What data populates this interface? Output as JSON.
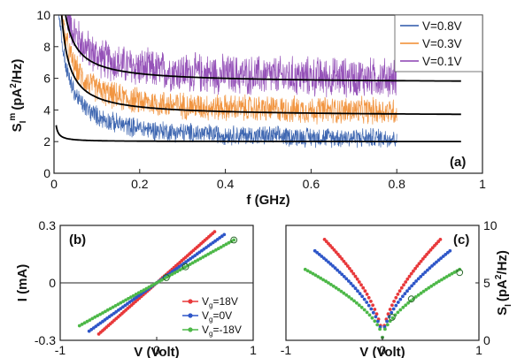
{
  "chart_data": [
    {
      "panel": "(a)",
      "type": "line",
      "xlabel": "f (GHz)",
      "ylabel_base": "S",
      "ylabel_sub": "I",
      "ylabel_sup": "m",
      "ylabel_units_pre": "(pA",
      "ylabel_units_sup": "2",
      "ylabel_units_post": "/Hz)",
      "xlim": [
        0,
        1
      ],
      "ylim": [
        0,
        10
      ],
      "x_ticks": [
        0,
        0.2,
        0.4,
        0.6,
        0.8,
        1
      ],
      "x_tick_labels": [
        "0",
        "0.2",
        "0.4",
        "0.6",
        "0.8",
        "1"
      ],
      "y_ticks": [
        0,
        2,
        4,
        6,
        8,
        10
      ],
      "y_tick_labels": [
        "0",
        "2",
        "4",
        "6",
        "8",
        "10"
      ],
      "legend_position": "top-right",
      "series": [
        {
          "name": "V=0.8V",
          "color": "#2a56a8",
          "noise_level": 2.0,
          "noise_amp": 0.55,
          "fit_level": 2.0
        },
        {
          "name": "V=0.3V",
          "color": "#f08a2c",
          "noise_level": 3.7,
          "noise_amp": 0.75,
          "fit_level": 3.6
        },
        {
          "name": "V=0.1V",
          "color": "#8a3fb0",
          "noise_level": 5.8,
          "noise_amp": 1.1,
          "fit_level": 5.7
        }
      ],
      "data_x_range": [
        0.005,
        0.8
      ],
      "fit_x_range": [
        0.005,
        0.95
      ],
      "fit_color": "#000000"
    },
    {
      "panel": "(b)",
      "type": "scatter",
      "xlabel": "V (Volt)",
      "ylabel": "I (mA)",
      "xlim": [
        -1,
        1
      ],
      "ylim": [
        -0.3,
        0.3
      ],
      "x_ticks": [
        -1,
        0,
        1
      ],
      "x_tick_labels": [
        "-1",
        "0",
        "1"
      ],
      "y_ticks": [
        -0.3,
        0,
        0.3
      ],
      "y_tick_labels": [
        "-0.3",
        "0",
        "0.3"
      ],
      "legend_position": "bottom-right",
      "series": [
        {
          "name": "V",
          "name_sub": "g",
          "name_rest": "=18V",
          "color": "#e8383a",
          "x_range": [
            -0.6,
            0.6
          ],
          "slope": 0.445
        },
        {
          "name": "V",
          "name_sub": "g",
          "name_rest": "=0V",
          "color": "#2e56c8",
          "x_range": [
            -0.7,
            0.7
          ],
          "slope": 0.36
        },
        {
          "name": "V",
          "name_sub": "g",
          "name_rest": "=-18V",
          "color": "#4db848",
          "x_range": [
            -0.8,
            0.8
          ],
          "slope": 0.28
        }
      ],
      "circled_points": [
        {
          "x": 0.1,
          "y": 0.028
        },
        {
          "x": 0.3,
          "y": 0.084
        },
        {
          "x": 0.8,
          "y": 0.224
        }
      ]
    },
    {
      "panel": "(c)",
      "type": "scatter",
      "xlabel": "V (Volt)",
      "ylabel_base": "S",
      "ylabel_sub": "I",
      "ylabel_units_pre": "(pA",
      "ylabel_units_sup": "2",
      "ylabel_units_post": "/Hz)",
      "xlim": [
        -1,
        1
      ],
      "ylim": [
        0,
        10
      ],
      "x_ticks": [
        -1,
        0,
        1
      ],
      "x_tick_labels": [
        "-1",
        "0",
        "1"
      ],
      "y_ticks": [
        0,
        5,
        10
      ],
      "y_tick_labels": [
        "0",
        "5",
        "10"
      ],
      "y_axis_side": "right",
      "series": [
        {
          "color": "#e8383a",
          "x_range": [
            -0.6,
            0.6
          ],
          "coef": 11.7
        },
        {
          "color": "#2e56c8",
          "x_range": [
            -0.7,
            0.7
          ],
          "coef": 9.4
        },
        {
          "color": "#4db848",
          "x_range": [
            -0.8,
            0.8
          ],
          "coef": 6.8
        }
      ],
      "circled_points": [
        {
          "x": 0.1,
          "y": 2.0
        },
        {
          "x": 0.3,
          "y": 3.6
        },
        {
          "x": 0.8,
          "y": 5.9
        }
      ]
    }
  ]
}
